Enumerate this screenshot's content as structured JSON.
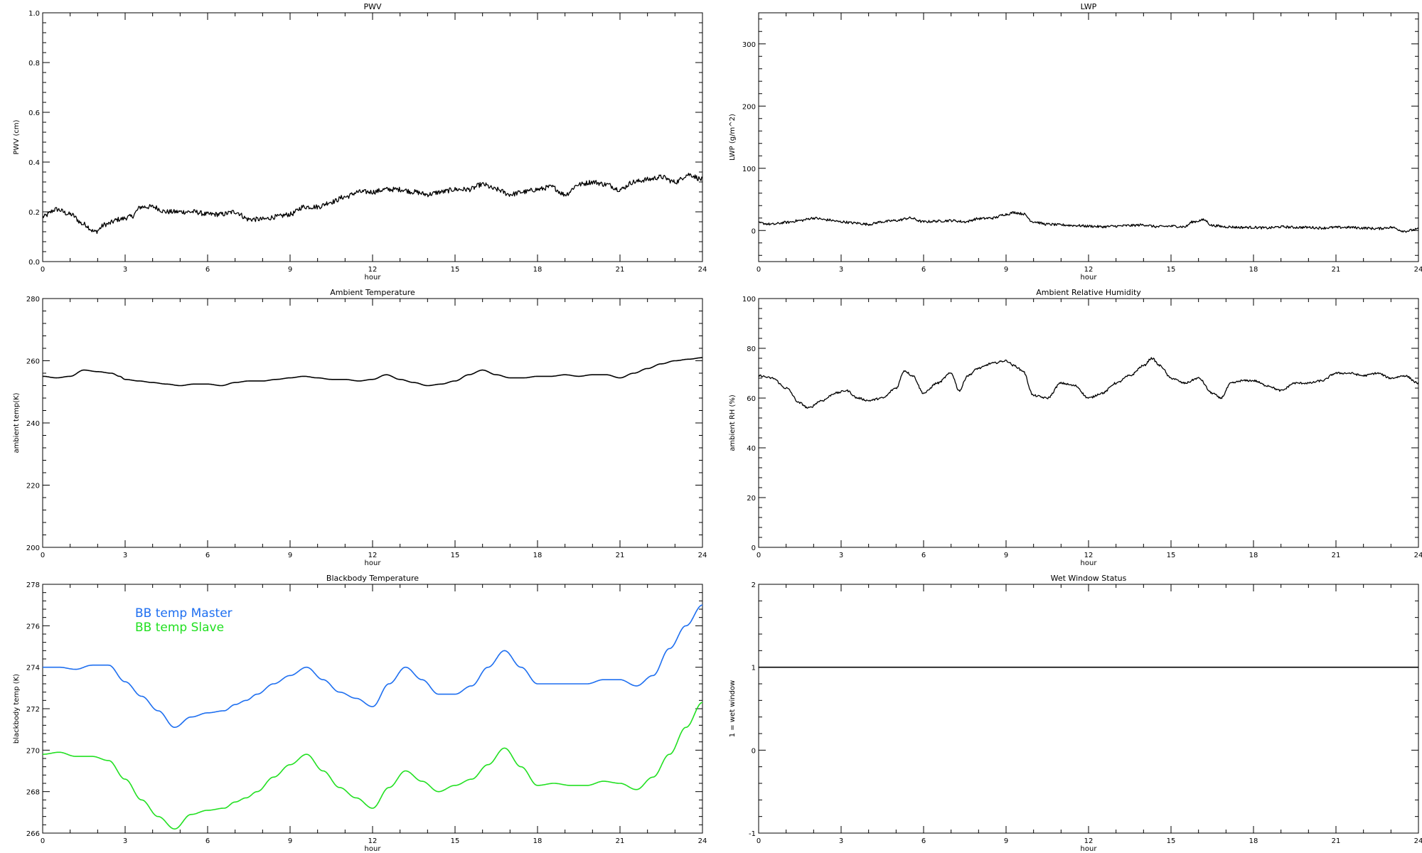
{
  "chart_data": [
    {
      "type": "line",
      "title": "PWV",
      "xlabel": "hour",
      "ylabel": "PWV (cm)",
      "xlim": [
        0,
        24
      ],
      "ylim": [
        0,
        1.0
      ],
      "xticks": [
        0,
        3,
        6,
        9,
        12,
        15,
        18,
        21,
        24
      ],
      "xtick_labels": [
        "0",
        "3",
        "6",
        "9",
        "12",
        "15",
        "18",
        "21",
        "24"
      ],
      "yticks": [
        0,
        0.2,
        0.4,
        0.6,
        0.8,
        1.0
      ],
      "ytick_labels": [
        "0.0",
        "0.2",
        "0.4",
        "0.6",
        "0.8",
        "1.0"
      ],
      "grid": false,
      "series": [
        {
          "color": "#000000",
          "noise": 0.01,
          "x": [
            0,
            0.5,
            1,
            1.5,
            1.9,
            2.3,
            2.8,
            3.2,
            3.6,
            4,
            4.5,
            5,
            5.5,
            6,
            6.5,
            7,
            7.5,
            8,
            8.5,
            9,
            9.5,
            10,
            10.5,
            11,
            11.5,
            12,
            12.5,
            13,
            13.5,
            14,
            14.5,
            15,
            15.5,
            16,
            16.5,
            17,
            17.5,
            18,
            18.5,
            19,
            19.5,
            20,
            20.5,
            21,
            21.5,
            22,
            22.5,
            23,
            23.5,
            24
          ],
          "y": [
            0.18,
            0.21,
            0.19,
            0.15,
            0.12,
            0.15,
            0.17,
            0.18,
            0.22,
            0.22,
            0.2,
            0.2,
            0.2,
            0.19,
            0.19,
            0.2,
            0.17,
            0.17,
            0.18,
            0.19,
            0.22,
            0.22,
            0.24,
            0.26,
            0.28,
            0.28,
            0.29,
            0.29,
            0.28,
            0.27,
            0.28,
            0.29,
            0.29,
            0.31,
            0.29,
            0.27,
            0.28,
            0.29,
            0.3,
            0.27,
            0.31,
            0.32,
            0.31,
            0.29,
            0.32,
            0.33,
            0.34,
            0.32,
            0.35,
            0.33
          ]
        }
      ]
    },
    {
      "type": "line",
      "title": "LWP",
      "xlabel": "hour",
      "ylabel": "LWP (g/m^2)",
      "xlim": [
        0,
        24
      ],
      "ylim": [
        -50,
        350
      ],
      "xticks": [
        0,
        3,
        6,
        9,
        12,
        15,
        18,
        21,
        24
      ],
      "xtick_labels": [
        "0",
        "3",
        "6",
        "9",
        "12",
        "15",
        "18",
        "21",
        "24"
      ],
      "yticks": [
        0,
        100,
        200,
        300
      ],
      "ytick_labels": [
        "0",
        "100",
        "200",
        "300"
      ],
      "grid": false,
      "series": [
        {
          "color": "#000000",
          "noise": 2,
          "x": [
            0,
            0.5,
            1,
            1.5,
            2,
            2.5,
            3,
            3.5,
            4,
            4.5,
            5,
            5.5,
            6,
            6.5,
            7,
            7.5,
            8,
            8.5,
            9,
            9.3,
            9.6,
            10,
            10.5,
            11,
            11.5,
            12,
            12.5,
            13,
            13.5,
            14,
            14.5,
            15,
            15.5,
            15.8,
            16.2,
            16.5,
            17,
            17.5,
            18,
            18.5,
            19,
            19.5,
            20,
            20.5,
            21,
            21.5,
            22,
            22.5,
            23,
            23.5,
            24
          ],
          "y": [
            12,
            10,
            13,
            16,
            20,
            17,
            14,
            12,
            10,
            14,
            16,
            20,
            14,
            15,
            16,
            14,
            19,
            20,
            26,
            29,
            27,
            14,
            10,
            9,
            8,
            7,
            6,
            7,
            8,
            9,
            6,
            7,
            6,
            14,
            17,
            8,
            6,
            5,
            5,
            4,
            6,
            5,
            5,
            4,
            5,
            5,
            4,
            3,
            5,
            -1,
            2
          ]
        }
      ]
    },
    {
      "type": "line",
      "title": "Ambient Temperature",
      "xlabel": "hour",
      "ylabel": "ambient temp(K)",
      "xlim": [
        0,
        24
      ],
      "ylim": [
        200,
        280
      ],
      "xticks": [
        0,
        3,
        6,
        9,
        12,
        15,
        18,
        21,
        24
      ],
      "xtick_labels": [
        "0",
        "3",
        "6",
        "9",
        "12",
        "15",
        "18",
        "21",
        "24"
      ],
      "yticks": [
        200,
        220,
        240,
        260,
        280
      ],
      "ytick_labels": [
        "200",
        "220",
        "240",
        "260",
        "280"
      ],
      "grid": false,
      "series": [
        {
          "color": "#000000",
          "noise": 0,
          "x": [
            0,
            0.5,
            1,
            1.5,
            2,
            2.5,
            2.8,
            3,
            3.5,
            4,
            4.5,
            5,
            5.5,
            6,
            6.5,
            7,
            7.5,
            8,
            8.5,
            9,
            9.5,
            10,
            10.5,
            11,
            11.5,
            12,
            12.5,
            13,
            13.5,
            14,
            14.5,
            15,
            15.5,
            16,
            16.5,
            17,
            17.5,
            18,
            18.5,
            19,
            19.5,
            20,
            20.5,
            21,
            21.5,
            22,
            22.5,
            23,
            23.5,
            24
          ],
          "y": [
            255,
            254.5,
            255,
            257,
            256.5,
            256,
            255,
            254,
            253.5,
            253,
            252.5,
            252,
            252.5,
            252.5,
            252,
            253,
            253.5,
            253.5,
            254,
            254.5,
            255,
            254.5,
            254,
            254,
            253.5,
            254,
            255.5,
            254,
            253,
            252,
            252.5,
            253.5,
            255.5,
            257,
            255.5,
            254.5,
            254.5,
            255,
            255,
            255.5,
            255,
            255.5,
            255.5,
            254.5,
            256,
            257.5,
            259,
            260,
            260.5,
            261
          ]
        }
      ]
    },
    {
      "type": "line",
      "title": "Ambient Relative Humidity",
      "xlabel": "hour",
      "ylabel": "ambient RH (%)",
      "xlim": [
        0,
        24
      ],
      "ylim": [
        0,
        100
      ],
      "xticks": [
        0,
        3,
        6,
        9,
        12,
        15,
        18,
        21,
        24
      ],
      "xtick_labels": [
        "0",
        "3",
        "6",
        "9",
        "12",
        "15",
        "18",
        "21",
        "24"
      ],
      "yticks": [
        0,
        20,
        40,
        60,
        80,
        100
      ],
      "ytick_labels": [
        "0",
        "20",
        "40",
        "60",
        "80",
        "100"
      ],
      "grid": false,
      "series": [
        {
          "color": "#000000",
          "noise": 0.4,
          "x": [
            0,
            0.5,
            1,
            1.5,
            1.8,
            2.3,
            2.8,
            3.2,
            3.6,
            4,
            4.5,
            5,
            5.3,
            5.6,
            6,
            6.5,
            7,
            7.3,
            7.6,
            8,
            8.5,
            9,
            9.3,
            9.6,
            10,
            10.5,
            11,
            11.5,
            12,
            12.5,
            13,
            13.5,
            14,
            14.3,
            14.6,
            15,
            15.5,
            16,
            16.5,
            16.8,
            17.2,
            17.6,
            18,
            18.5,
            19,
            19.5,
            20,
            20.5,
            21,
            21.5,
            22,
            22.5,
            23,
            23.5,
            24
          ],
          "y": [
            69,
            68,
            64,
            58,
            56,
            59,
            62,
            63,
            60,
            59,
            60,
            64,
            71,
            69,
            62,
            66,
            70,
            63,
            69,
            72,
            74,
            75,
            73,
            71,
            61,
            60,
            66,
            65,
            60,
            62,
            66,
            69,
            73,
            76,
            73,
            68,
            66,
            68,
            62,
            60,
            66,
            67,
            67,
            65,
            63,
            66,
            66,
            67,
            70,
            70,
            69,
            70,
            68,
            69,
            66
          ]
        }
      ]
    },
    {
      "type": "line",
      "title": "Blackbody Temperature",
      "xlabel": "hour",
      "ylabel": "blackbody temp (K)",
      "xlim": [
        0,
        24
      ],
      "ylim": [
        266,
        278
      ],
      "xticks": [
        0,
        3,
        6,
        9,
        12,
        15,
        18,
        21,
        24
      ],
      "xtick_labels": [
        "0",
        "3",
        "6",
        "9",
        "12",
        "15",
        "18",
        "21",
        "24"
      ],
      "yticks": [
        266,
        268,
        270,
        272,
        274,
        276,
        278
      ],
      "ytick_labels": [
        "266",
        "268",
        "270",
        "272",
        "274",
        "276",
        "278"
      ],
      "grid": false,
      "legend": "top-left",
      "series": [
        {
          "name": "BB temp Master",
          "color": "#1e6ff0",
          "noise": 0,
          "x": [
            0,
            0.6,
            1.2,
            1.8,
            2.4,
            3,
            3.6,
            4.2,
            4.8,
            5.4,
            6,
            6.6,
            7,
            7.4,
            7.8,
            8.4,
            9,
            9.6,
            10.2,
            10.8,
            11.4,
            12,
            12.6,
            13.2,
            13.8,
            14.4,
            15,
            15.6,
            16.2,
            16.8,
            17.4,
            18,
            18.6,
            19.2,
            19.8,
            20.4,
            21,
            21.6,
            22.2,
            22.8,
            23.4,
            24
          ],
          "y": [
            274,
            274,
            273.9,
            274.1,
            274.1,
            273.3,
            272.6,
            271.9,
            271.1,
            271.6,
            271.8,
            271.9,
            272.2,
            272.4,
            272.7,
            273.2,
            273.6,
            274,
            273.4,
            272.8,
            272.5,
            272.1,
            273.2,
            274,
            273.4,
            272.7,
            272.7,
            273.1,
            274,
            274.8,
            274,
            273.2,
            273.2,
            273.2,
            273.2,
            273.4,
            273.4,
            273.1,
            273.6,
            274.9,
            276,
            277
          ]
        },
        {
          "name": "BB temp Slave",
          "color": "#22e022",
          "noise": 0,
          "x": [
            0,
            0.6,
            1.2,
            1.8,
            2.4,
            3,
            3.6,
            4.2,
            4.8,
            5.4,
            6,
            6.6,
            7,
            7.4,
            7.8,
            8.4,
            9,
            9.6,
            10.2,
            10.8,
            11.4,
            12,
            12.6,
            13.2,
            13.8,
            14.4,
            15,
            15.6,
            16.2,
            16.8,
            17.4,
            18,
            18.6,
            19.2,
            19.8,
            20.4,
            21,
            21.6,
            22.2,
            22.8,
            23.4,
            24
          ],
          "y": [
            269.8,
            269.9,
            269.7,
            269.7,
            269.5,
            268.6,
            267.6,
            266.8,
            266.2,
            266.9,
            267.1,
            267.2,
            267.5,
            267.7,
            268,
            268.7,
            269.3,
            269.8,
            269,
            268.2,
            267.7,
            267.2,
            268.2,
            269,
            268.5,
            268,
            268.3,
            268.6,
            269.3,
            270.1,
            269.2,
            268.3,
            268.4,
            268.3,
            268.3,
            268.5,
            268.4,
            268.1,
            268.7,
            269.8,
            271.1,
            272.3
          ]
        }
      ]
    },
    {
      "type": "line",
      "title": "Wet Window Status",
      "xlabel": "hour",
      "ylabel": "1 = wet window",
      "xlim": [
        0,
        24
      ],
      "ylim": [
        -1,
        2
      ],
      "xticks": [
        0,
        3,
        6,
        9,
        12,
        15,
        18,
        21,
        24
      ],
      "xtick_labels": [
        "0",
        "3",
        "6",
        "9",
        "12",
        "15",
        "18",
        "21",
        "24"
      ],
      "yticks": [
        -1,
        0,
        1,
        2
      ],
      "ytick_labels": [
        "-1",
        "0",
        "1",
        "2"
      ],
      "grid": false,
      "series": [
        {
          "color": "#000000",
          "noise": 0,
          "x": [
            0,
            24
          ],
          "y": [
            1,
            1
          ]
        }
      ]
    }
  ]
}
